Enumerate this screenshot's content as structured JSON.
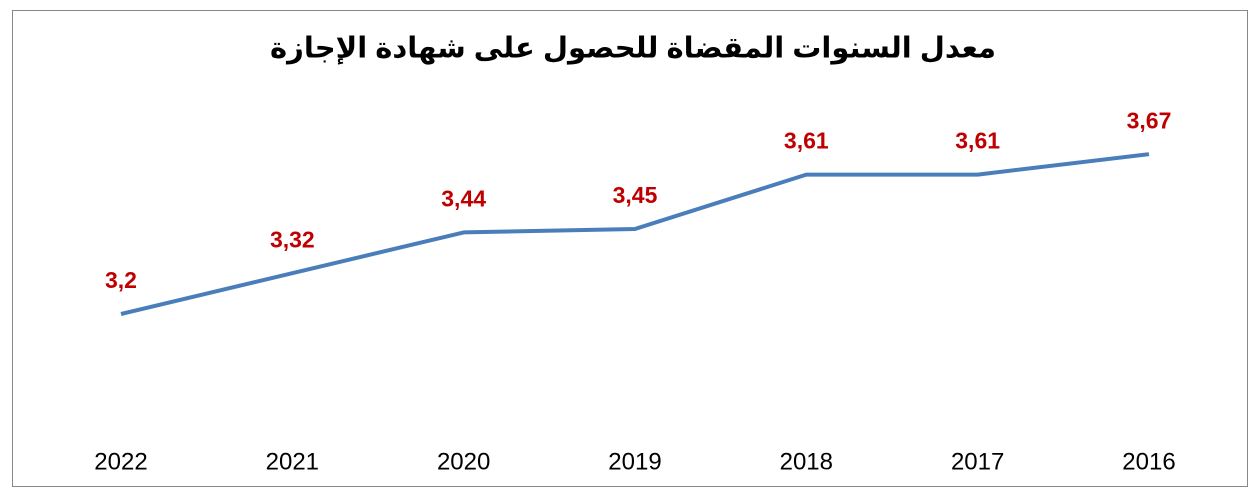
{
  "chart_data": {
    "type": "line",
    "title": "معدل السنوات المقضاة للحصول على شهادة الإجازة",
    "categories": [
      "2022",
      "2021",
      "2020",
      "2019",
      "2018",
      "2017",
      "2016"
    ],
    "values": [
      3.2,
      3.32,
      3.44,
      3.45,
      3.61,
      3.61,
      3.67
    ],
    "value_labels": [
      "3,2",
      "3,32",
      "3,44",
      "3,45",
      "3,61",
      "3,61",
      "3,67"
    ],
    "color": "#4a7ebb",
    "value_label_color": "#c00000",
    "ylim": [
      2.8,
      4
    ]
  }
}
